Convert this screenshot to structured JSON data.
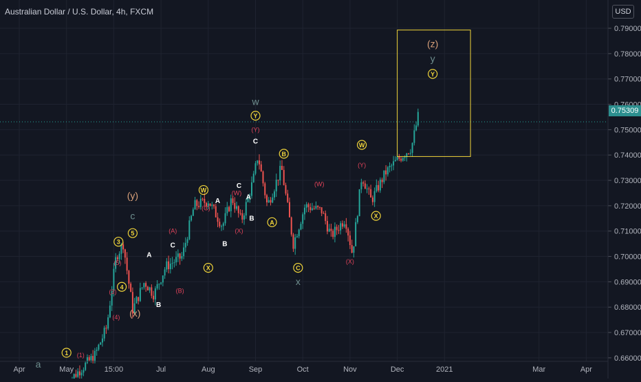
{
  "header": {
    "title": "Australian Dollar / U.S. Dollar, 4h, FXCM"
  },
  "currency_button": "USD",
  "last_price_label": "0.75309",
  "colors": {
    "background": "#131722",
    "up": "#26a69a",
    "down": "#ef5350",
    "grid": "#1f2330",
    "axis_text": "#b2b5be",
    "price_line": "#26a69a",
    "box": "#f0d43a"
  },
  "chart_data": {
    "type": "candlestick",
    "symbol": "Australian Dollar / U.S. Dollar",
    "interval": "4h",
    "source": "FXCM",
    "last_price": 0.75309,
    "ylim": [
      0.654,
      0.793
    ],
    "y_ticks": [
      "0.66000",
      "0.67000",
      "0.68000",
      "0.69000",
      "0.70000",
      "0.71000",
      "0.72000",
      "0.73000",
      "0.74000",
      "0.75000",
      "0.76000",
      "0.77000",
      "0.78000",
      "0.79000"
    ],
    "x_ticks": [
      {
        "label": "Apr",
        "month": 0
      },
      {
        "label": "May",
        "month": 1
      },
      {
        "label": "15:00",
        "month": 2
      },
      {
        "label": "Jul",
        "month": 3
      },
      {
        "label": "Aug",
        "month": 4
      },
      {
        "label": "Sep",
        "month": 5
      },
      {
        "label": "Oct",
        "month": 6
      },
      {
        "label": "Nov",
        "month": 7
      },
      {
        "label": "Dec",
        "month": 8
      },
      {
        "label": "2021",
        "month": 9
      },
      {
        "label": "Mar",
        "month": 11
      },
      {
        "label": "Apr",
        "month": 12
      }
    ],
    "price_path": [
      [
        1.0,
        0.65
      ],
      [
        1.6,
        0.661
      ],
      [
        1.85,
        0.672
      ],
      [
        2.05,
        0.7
      ],
      [
        2.2,
        0.705
      ],
      [
        2.4,
        0.679
      ],
      [
        2.65,
        0.69
      ],
      [
        2.85,
        0.685
      ],
      [
        3.1,
        0.696
      ],
      [
        3.45,
        0.7
      ],
      [
        3.7,
        0.72
      ],
      [
        4.0,
        0.722
      ],
      [
        4.3,
        0.712
      ],
      [
        4.5,
        0.723
      ],
      [
        4.7,
        0.714
      ],
      [
        4.95,
        0.73
      ],
      [
        5.05,
        0.74
      ],
      [
        5.25,
        0.72
      ],
      [
        5.55,
        0.735
      ],
      [
        5.8,
        0.705
      ],
      [
        6.05,
        0.72
      ],
      [
        6.4,
        0.718
      ],
      [
        6.6,
        0.708
      ],
      [
        6.9,
        0.715
      ],
      [
        7.05,
        0.701
      ],
      [
        7.25,
        0.732
      ],
      [
        7.45,
        0.722
      ],
      [
        7.75,
        0.733
      ],
      [
        8.0,
        0.738
      ],
      [
        8.3,
        0.743
      ],
      [
        8.45,
        0.756
      ]
    ],
    "box": {
      "x": [
        8.0,
        9.55
      ],
      "y": [
        0.7394,
        0.7893
      ]
    },
    "labels": [
      {
        "t": "a",
        "x": 0.4,
        "y": 0.6575,
        "c": "gray",
        "f": "big"
      },
      {
        "t": "1",
        "x": 1.0,
        "y": 0.662,
        "c": "yellow",
        "f": "circ"
      },
      {
        "t": "(1)",
        "x": 1.3,
        "y": 0.661,
        "c": "red",
        "f": "small"
      },
      {
        "t": "(y)",
        "x": 2.4,
        "y": 0.724,
        "c": "orange",
        "f": "big"
      },
      {
        "t": "c",
        "x": 2.4,
        "y": 0.716,
        "c": "gray",
        "f": "big"
      },
      {
        "t": "3",
        "x": 2.1,
        "y": 0.7058,
        "c": "yellow",
        "f": "circ"
      },
      {
        "t": "5",
        "x": 2.4,
        "y": 0.7092,
        "c": "yellow",
        "f": "circ"
      },
      {
        "t": "(5)",
        "x": 2.08,
        "y": 0.6975,
        "c": "red",
        "f": "small"
      },
      {
        "t": "(3)",
        "x": 1.98,
        "y": 0.686,
        "c": "red",
        "f": "small"
      },
      {
        "t": "4",
        "x": 2.17,
        "y": 0.688,
        "c": "yellow",
        "f": "circ"
      },
      {
        "t": "(4)",
        "x": 2.05,
        "y": 0.676,
        "c": "red",
        "f": "small"
      },
      {
        "t": "(x)",
        "x": 2.45,
        "y": 0.6775,
        "c": "orange",
        "f": "big"
      },
      {
        "t": "A",
        "x": 2.75,
        "y": 0.7006,
        "c": "white",
        "f": "bold"
      },
      {
        "t": "B",
        "x": 2.95,
        "y": 0.681,
        "c": "white",
        "f": "bold"
      },
      {
        "t": "C",
        "x": 3.25,
        "y": 0.7045,
        "c": "white",
        "f": "bold"
      },
      {
        "t": "(A)",
        "x": 3.25,
        "y": 0.71,
        "c": "red",
        "f": "small"
      },
      {
        "t": "(B)",
        "x": 3.4,
        "y": 0.6865,
        "c": "red",
        "f": "small"
      },
      {
        "t": "W",
        "x": 3.9,
        "y": 0.7262,
        "c": "yellow",
        "f": "circ"
      },
      {
        "t": "X",
        "x": 4.0,
        "y": 0.6955,
        "c": "yellow",
        "f": "circ"
      },
      {
        "t": "(C)",
        "x": 3.95,
        "y": 0.719,
        "c": "red",
        "f": "small"
      },
      {
        "t": "A",
        "x": 4.2,
        "y": 0.722,
        "c": "white",
        "f": "bold"
      },
      {
        "t": "B",
        "x": 4.35,
        "y": 0.705,
        "c": "white",
        "f": "bold"
      },
      {
        "t": "C",
        "x": 4.65,
        "y": 0.728,
        "c": "white",
        "f": "bold"
      },
      {
        "t": "(W)",
        "x": 4.6,
        "y": 0.725,
        "c": "red",
        "f": "small"
      },
      {
        "t": "(X)",
        "x": 4.65,
        "y": 0.71,
        "c": "red",
        "f": "small"
      },
      {
        "t": "B",
        "x": 4.92,
        "y": 0.715,
        "c": "white",
        "f": "bold"
      },
      {
        "t": "A",
        "x": 4.85,
        "y": 0.7235,
        "c": "white",
        "f": "bold"
      },
      {
        "t": "w",
        "x": 5.0,
        "y": 0.761,
        "c": "gray",
        "f": "big"
      },
      {
        "t": "Y",
        "x": 5.0,
        "y": 0.7555,
        "c": "yellow",
        "f": "circ"
      },
      {
        "t": "(Y)",
        "x": 5.0,
        "y": 0.75,
        "c": "red",
        "f": "small"
      },
      {
        "t": "C",
        "x": 5.0,
        "y": 0.7455,
        "c": "white",
        "f": "bold"
      },
      {
        "t": "B",
        "x": 5.6,
        "y": 0.7405,
        "c": "yellow",
        "f": "circ"
      },
      {
        "t": "A",
        "x": 5.35,
        "y": 0.7135,
        "c": "yellow",
        "f": "circ"
      },
      {
        "t": "C",
        "x": 5.9,
        "y": 0.6955,
        "c": "yellow",
        "f": "circ"
      },
      {
        "t": "x",
        "x": 5.9,
        "y": 0.69,
        "c": "gray",
        "f": "big"
      },
      {
        "t": "(W)",
        "x": 6.35,
        "y": 0.7285,
        "c": "red",
        "f": "small"
      },
      {
        "t": "(X)",
        "x": 7.0,
        "y": 0.698,
        "c": "red",
        "f": "small"
      },
      {
        "t": "W",
        "x": 7.25,
        "y": 0.744,
        "c": "yellow",
        "f": "circ"
      },
      {
        "t": "(Y)",
        "x": 7.25,
        "y": 0.736,
        "c": "red",
        "f": "small"
      },
      {
        "t": "X",
        "x": 7.55,
        "y": 0.716,
        "c": "yellow",
        "f": "circ"
      },
      {
        "t": "(z)",
        "x": 8.75,
        "y": 0.7838,
        "c": "orange",
        "f": "big"
      },
      {
        "t": "y",
        "x": 8.75,
        "y": 0.778,
        "c": "gray",
        "f": "big"
      },
      {
        "t": "Y",
        "x": 8.75,
        "y": 0.772,
        "c": "yellow",
        "f": "circ"
      }
    ]
  }
}
